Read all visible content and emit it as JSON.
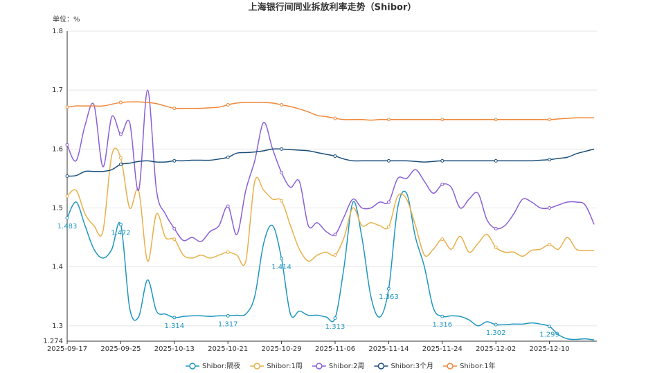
{
  "chart_data": {
    "type": "line",
    "title": "上海银行间同业拆放利率走势（Shibor）",
    "unit_label": "单位：%",
    "categories": [
      "2025-09-17",
      null,
      null,
      null,
      null,
      null,
      "2025-09-25",
      null,
      null,
      null,
      null,
      null,
      "2025-10-13",
      null,
      null,
      null,
      null,
      null,
      "2025-10-21",
      null,
      null,
      null,
      null,
      null,
      "2025-10-29",
      null,
      null,
      null,
      null,
      null,
      "2025-11-06",
      null,
      null,
      null,
      null,
      null,
      "2025-11-14",
      null,
      null,
      null,
      null,
      null,
      "2025-11-24",
      null,
      null,
      null,
      null,
      null,
      "2025-12-02",
      null,
      null,
      null,
      null,
      null,
      "2025-12-10",
      null,
      null,
      null,
      null,
      null
    ],
    "ylim": [
      1.274,
      1.8
    ],
    "yticks": [
      1.274,
      1.3,
      1.4,
      1.5,
      1.6,
      1.7,
      1.8
    ],
    "grid": true,
    "legend": "bottom",
    "smooth": true,
    "series": [
      {
        "name": "Shibor:隔夜",
        "color": "#1f96c0",
        "labels": true,
        "values": [
          1.483,
          1.51,
          1.47,
          1.43,
          1.415,
          1.43,
          1.472,
          1.33,
          1.315,
          1.378,
          1.325,
          1.32,
          1.314,
          1.316,
          1.317,
          1.317,
          1.316,
          1.317,
          1.317,
          1.318,
          1.32,
          1.35,
          1.44,
          1.47,
          1.414,
          1.32,
          1.325,
          1.318,
          1.318,
          1.315,
          1.313,
          1.4,
          1.51,
          1.45,
          1.35,
          1.315,
          1.363,
          1.5,
          1.525,
          1.45,
          1.4,
          1.33,
          1.316,
          1.317,
          1.316,
          1.31,
          1.3,
          1.307,
          1.302,
          1.302,
          1.303,
          1.303,
          1.305,
          1.303,
          1.299,
          1.285,
          1.278,
          1.277,
          1.278,
          1.276
        ]
      },
      {
        "name": "Shibor:1周",
        "color": "#e8b04a",
        "values": [
          1.52,
          1.53,
          1.49,
          1.47,
          1.46,
          1.59,
          1.585,
          1.5,
          1.53,
          1.41,
          1.49,
          1.45,
          1.447,
          1.42,
          1.415,
          1.42,
          1.415,
          1.42,
          1.425,
          1.42,
          1.41,
          1.545,
          1.53,
          1.515,
          1.512,
          1.47,
          1.43,
          1.41,
          1.42,
          1.425,
          1.42,
          1.45,
          1.5,
          1.47,
          1.475,
          1.47,
          1.468,
          1.52,
          1.515,
          1.47,
          1.42,
          1.43,
          1.447,
          1.43,
          1.452,
          1.425,
          1.44,
          1.455,
          1.433,
          1.425,
          1.425,
          1.418,
          1.428,
          1.43,
          1.438,
          1.43,
          1.45,
          1.43,
          1.428,
          1.428
        ]
      },
      {
        "name": "Shibor:2周",
        "color": "#8a5fd6",
        "values": [
          1.607,
          1.58,
          1.64,
          1.675,
          1.57,
          1.655,
          1.625,
          1.645,
          1.53,
          1.7,
          1.53,
          1.49,
          1.465,
          1.445,
          1.45,
          1.443,
          1.46,
          1.47,
          1.503,
          1.455,
          1.53,
          1.58,
          1.645,
          1.6,
          1.56,
          1.535,
          1.545,
          1.47,
          1.475,
          1.46,
          1.455,
          1.485,
          1.515,
          1.5,
          1.5,
          1.51,
          1.51,
          1.55,
          1.55,
          1.565,
          1.545,
          1.525,
          1.54,
          1.535,
          1.5,
          1.515,
          1.525,
          1.48,
          1.465,
          1.47,
          1.49,
          1.515,
          1.51,
          1.5,
          1.5,
          1.505,
          1.51,
          1.51,
          1.505,
          1.472
        ]
      },
      {
        "name": "Shibor:3个月",
        "color": "#1a4f7a",
        "values": [
          1.554,
          1.555,
          1.562,
          1.562,
          1.562,
          1.565,
          1.574,
          1.576,
          1.579,
          1.58,
          1.578,
          1.578,
          1.58,
          1.58,
          1.581,
          1.581,
          1.581,
          1.583,
          1.586,
          1.593,
          1.594,
          1.595,
          1.597,
          1.6,
          1.6,
          1.599,
          1.598,
          1.597,
          1.594,
          1.591,
          1.588,
          1.583,
          1.58,
          1.58,
          1.58,
          1.58,
          1.58,
          1.58,
          1.58,
          1.579,
          1.578,
          1.579,
          1.58,
          1.58,
          1.58,
          1.58,
          1.58,
          1.58,
          1.58,
          1.58,
          1.58,
          1.58,
          1.58,
          1.581,
          1.582,
          1.584,
          1.586,
          1.592,
          1.596,
          1.6
        ]
      },
      {
        "name": "Shibor:1年",
        "color": "#f0883a",
        "values": [
          1.671,
          1.673,
          1.673,
          1.673,
          1.673,
          1.676,
          1.679,
          1.68,
          1.68,
          1.679,
          1.677,
          1.673,
          1.669,
          1.669,
          1.669,
          1.669,
          1.67,
          1.671,
          1.675,
          1.678,
          1.679,
          1.679,
          1.679,
          1.678,
          1.675,
          1.672,
          1.668,
          1.663,
          1.657,
          1.655,
          1.652,
          1.65,
          1.65,
          1.65,
          1.649,
          1.65,
          1.65,
          1.65,
          1.65,
          1.65,
          1.65,
          1.65,
          1.65,
          1.65,
          1.65,
          1.65,
          1.65,
          1.65,
          1.65,
          1.65,
          1.65,
          1.65,
          1.65,
          1.65,
          1.65,
          1.651,
          1.652,
          1.653,
          1.653,
          1.653
        ]
      }
    ]
  }
}
